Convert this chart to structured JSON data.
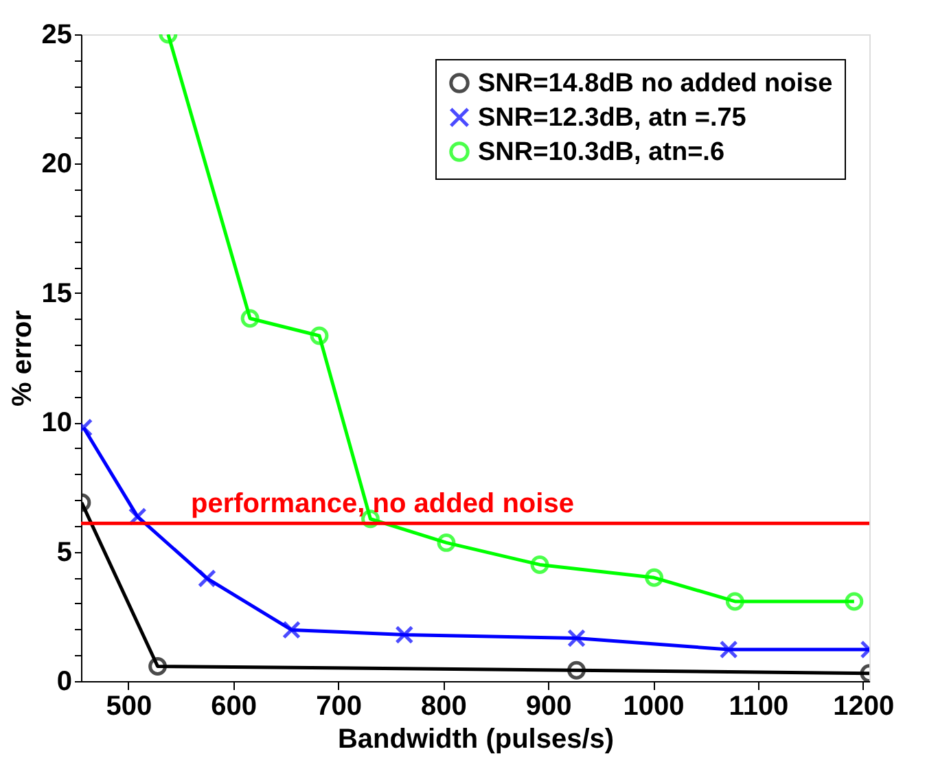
{
  "chart_data": {
    "type": "line",
    "xlabel": "Bandwidth (pulses/s)",
    "ylabel": "% error",
    "xlim": [
      455,
      1206
    ],
    "xticks": [
      500,
      600,
      700,
      800,
      900,
      1000,
      1100,
      1200
    ],
    "ylim": [
      0,
      25
    ],
    "yticks": [
      0,
      {
        "value": 1,
        "label": null
      },
      {
        "value": 2,
        "label": null
      },
      {
        "value": 3,
        "label": null
      },
      {
        "value": 4,
        "label": null
      },
      5,
      {
        "value": 6,
        "label": null
      },
      {
        "value": 7,
        "label": null
      },
      {
        "value": 8,
        "label": null
      },
      {
        "value": 9,
        "label": null
      },
      10,
      {
        "value": 11,
        "label": null
      },
      {
        "value": 12,
        "label": null
      },
      {
        "value": 13,
        "label": null
      },
      {
        "value": 14,
        "label": null
      },
      15,
      {
        "value": 16,
        "label": null
      },
      {
        "value": 17,
        "label": null
      },
      {
        "value": 18,
        "label": null
      },
      {
        "value": 19,
        "label": null
      },
      20,
      {
        "value": 21,
        "label": null
      },
      {
        "value": 22,
        "label": null
      },
      {
        "value": 23,
        "label": null
      },
      {
        "value": 24,
        "label": null
      },
      25
    ],
    "grid": false,
    "legend": "top right",
    "line_style": "solid",
    "series": [
      {
        "name": "SNR=14.8dB no added noise",
        "color": "#000000",
        "marker": "circle",
        "x": [
          455.6,
          528,
          927,
          1206
        ],
        "values": [
          6.9,
          0.57,
          0.42,
          0.3
        ]
      },
      {
        "name": "SNR=12.3dB, atn =.75",
        "color": "#0000ff",
        "marker": "cross",
        "x": [
          457.4,
          508.8,
          575,
          655.5,
          763,
          927,
          1072,
          1206
        ],
        "values": [
          9.8,
          6.36,
          3.97,
          1.98,
          1.79,
          1.66,
          1.22,
          1.22
        ]
      },
      {
        "name": "SNR=10.3dB, atn=.6",
        "color": "#00ff00",
        "marker": "circle",
        "x": [
          538,
          616,
          682,
          730.7,
          803,
          892,
          1001,
          1078,
          1191.5
        ],
        "values": [
          25,
          14.02,
          13.35,
          6.27,
          5.35,
          4.5,
          4.0,
          3.08,
          3.08
        ]
      }
    ],
    "ref_lines": [
      {
        "axis": "y",
        "value": 6.1,
        "label": "performance, no added noise",
        "color": "#ff0000",
        "line_style": "solid"
      }
    ]
  }
}
